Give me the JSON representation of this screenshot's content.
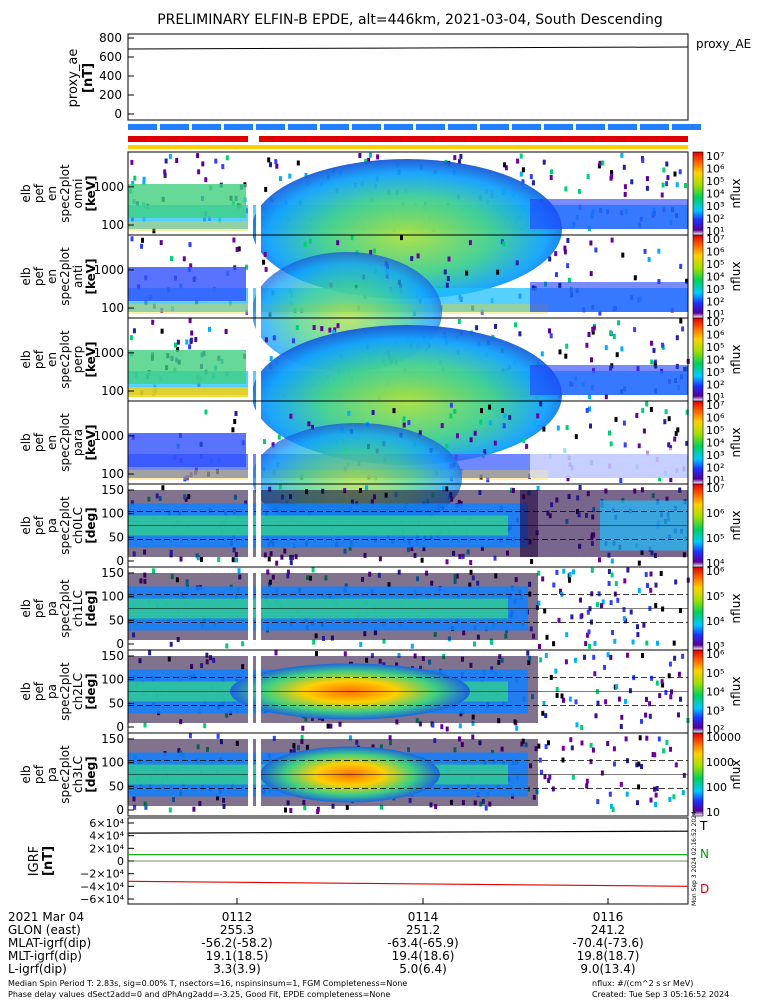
{
  "title": "PRELIMINARY ELFIN-B EPDE, alt=446km, 2021-03-04, South Descending",
  "top_panel": {
    "label": "proxy_ae\n[nT]",
    "legend": "proxy_AE",
    "ticks": [
      "800",
      "600",
      "400",
      "200",
      "0"
    ]
  },
  "panels": [
    {
      "ylabel": [
        "elb",
        "pef",
        "en",
        "spec2plot",
        "omni",
        "[keV]"
      ],
      "yticks": [
        "1000",
        "100"
      ],
      "cbar": [
        "10⁷",
        "10⁶",
        "10⁵",
        "10⁴",
        "10³",
        "10²",
        "10¹"
      ],
      "cunit": "nflux"
    },
    {
      "ylabel": [
        "elb",
        "pef",
        "en",
        "spec2plot",
        "anti",
        "[keV]"
      ],
      "yticks": [
        "1000",
        "100"
      ],
      "cbar": [
        "10⁷",
        "10⁶",
        "10⁵",
        "10⁴",
        "10³",
        "10²",
        "10¹"
      ],
      "cunit": "nflux"
    },
    {
      "ylabel": [
        "elb",
        "pef",
        "en",
        "spec2plot",
        "perp",
        "[keV]"
      ],
      "yticks": [
        "1000",
        "100"
      ],
      "cbar": [
        "10⁷",
        "10⁶",
        "10⁵",
        "10⁴",
        "10³",
        "10²",
        "10¹"
      ],
      "cunit": "nflux"
    },
    {
      "ylabel": [
        "elb",
        "pef",
        "en",
        "spec2plot",
        "para",
        "[keV]"
      ],
      "yticks": [
        "1000",
        "100"
      ],
      "cbar": [
        "10⁷",
        "10⁶",
        "10⁵",
        "10⁴",
        "10³",
        "10²",
        "10¹"
      ],
      "cunit": "nflux"
    },
    {
      "ylabel": [
        "elb",
        "pef",
        "pa",
        "spec2plot",
        "ch0LC",
        "[deg]"
      ],
      "yticks": [
        "150",
        "100",
        "50",
        "0"
      ],
      "cbar": [
        "10⁷",
        "10⁶",
        "10⁵",
        "10⁴"
      ],
      "cunit": "nflux"
    },
    {
      "ylabel": [
        "elb",
        "pef",
        "pa",
        "spec2plot",
        "ch1LC",
        "[deg]"
      ],
      "yticks": [
        "150",
        "100",
        "50",
        "0"
      ],
      "cbar": [
        "10⁶",
        "10⁵",
        "10⁴",
        "10³"
      ],
      "cunit": "nflux"
    },
    {
      "ylabel": [
        "elb",
        "pef",
        "pa",
        "spec2plot",
        "ch2LC",
        "[deg]"
      ],
      "yticks": [
        "150",
        "100",
        "50",
        "0"
      ],
      "cbar": [
        "10⁶",
        "10⁵",
        "10⁴",
        "10³",
        "10²"
      ],
      "cunit": "nflux"
    },
    {
      "ylabel": [
        "elb",
        "pef",
        "pa",
        "spec2plot",
        "ch3LC",
        "[deg]"
      ],
      "yticks": [
        "150",
        "100",
        "50",
        "0"
      ],
      "cbar": [
        "10000",
        "1000",
        "100",
        "10"
      ],
      "cunit": "nflux"
    }
  ],
  "igrf_panel": {
    "label": "IGRF\n[nT]",
    "ticks": [
      "6×10⁴",
      "4×10⁴",
      "2×10⁴",
      "0",
      "−2×10⁴",
      "−4×10⁴",
      "−6×10⁴"
    ],
    "legend": [
      "T",
      "N",
      "D"
    ],
    "side_note": "Mon Sep  3 2024 02:16:52 2024"
  },
  "footer": {
    "date": "2021 Mar 04",
    "row_labels": [
      "GLON (east)",
      "MLAT-igrf(dip)",
      "MLT-igrf(dip)",
      "L-igrf(dip)"
    ],
    "times": [
      "0112",
      "0114",
      "0116"
    ],
    "cols": [
      [
        "255.3",
        "-56.2(-58.2)",
        "19.1(18.5)",
        "3.3(3.9)"
      ],
      [
        "251.2",
        "-63.4(-65.9)",
        "19.4(18.6)",
        "5.0(6.4)"
      ],
      [
        "241.2",
        "-70.4(-73.6)",
        "19.8(18.7)",
        "9.0(13.4)"
      ]
    ],
    "note1": "Median Spin Period T: 2.83s, sig=0.00% T, nsectors=16, nspinsinsum=1, FGM Completeness=None",
    "note2": "Phase delay values dSect2add=0 and dPhAng2add=-3.25, Good Fit, EPDE completeness=None",
    "unit_note": "nflux: #/(cm^2 s sr MeV)",
    "created": "Created: Tue Sep  3 05:16:52 2024"
  },
  "chart_data": {
    "type": "heatmap",
    "title": "PRELIMINARY ELFIN-B EPDE, alt=446km, 2021-03-04, South Descending",
    "x_ticks": [
      "0112",
      "0114",
      "0116"
    ],
    "proxy_ae_value_nT": 680,
    "proxy_ae_ylim": [
      0,
      800
    ],
    "energy_ylim_keV": [
      60,
      6000
    ],
    "pitch_angle_ylim_deg": [
      0,
      180
    ],
    "igrf_ylim_nT": [
      -60000,
      60000
    ],
    "igrf_series": [
      {
        "name": "T",
        "start": 44000,
        "end": 47000,
        "color": "#000000"
      },
      {
        "name": "N",
        "start": 10000,
        "end": 10000,
        "color": "#00a000"
      },
      {
        "name": "D",
        "start": -32000,
        "end": -40000,
        "color": "#e00000"
      }
    ],
    "spectrogram_features": [
      "energy panels: flux peak ~1000-3000 keV before 0112 fall off, broad green dome from 0112 to ~0115",
      "pitch-angle panels: trapped band near 90 deg strongest between 0112 and 0114"
    ],
    "colors": {
      "grid": "#000000",
      "series_T": "#000000",
      "series_N": "#00a000",
      "series_D": "#e00000"
    }
  }
}
